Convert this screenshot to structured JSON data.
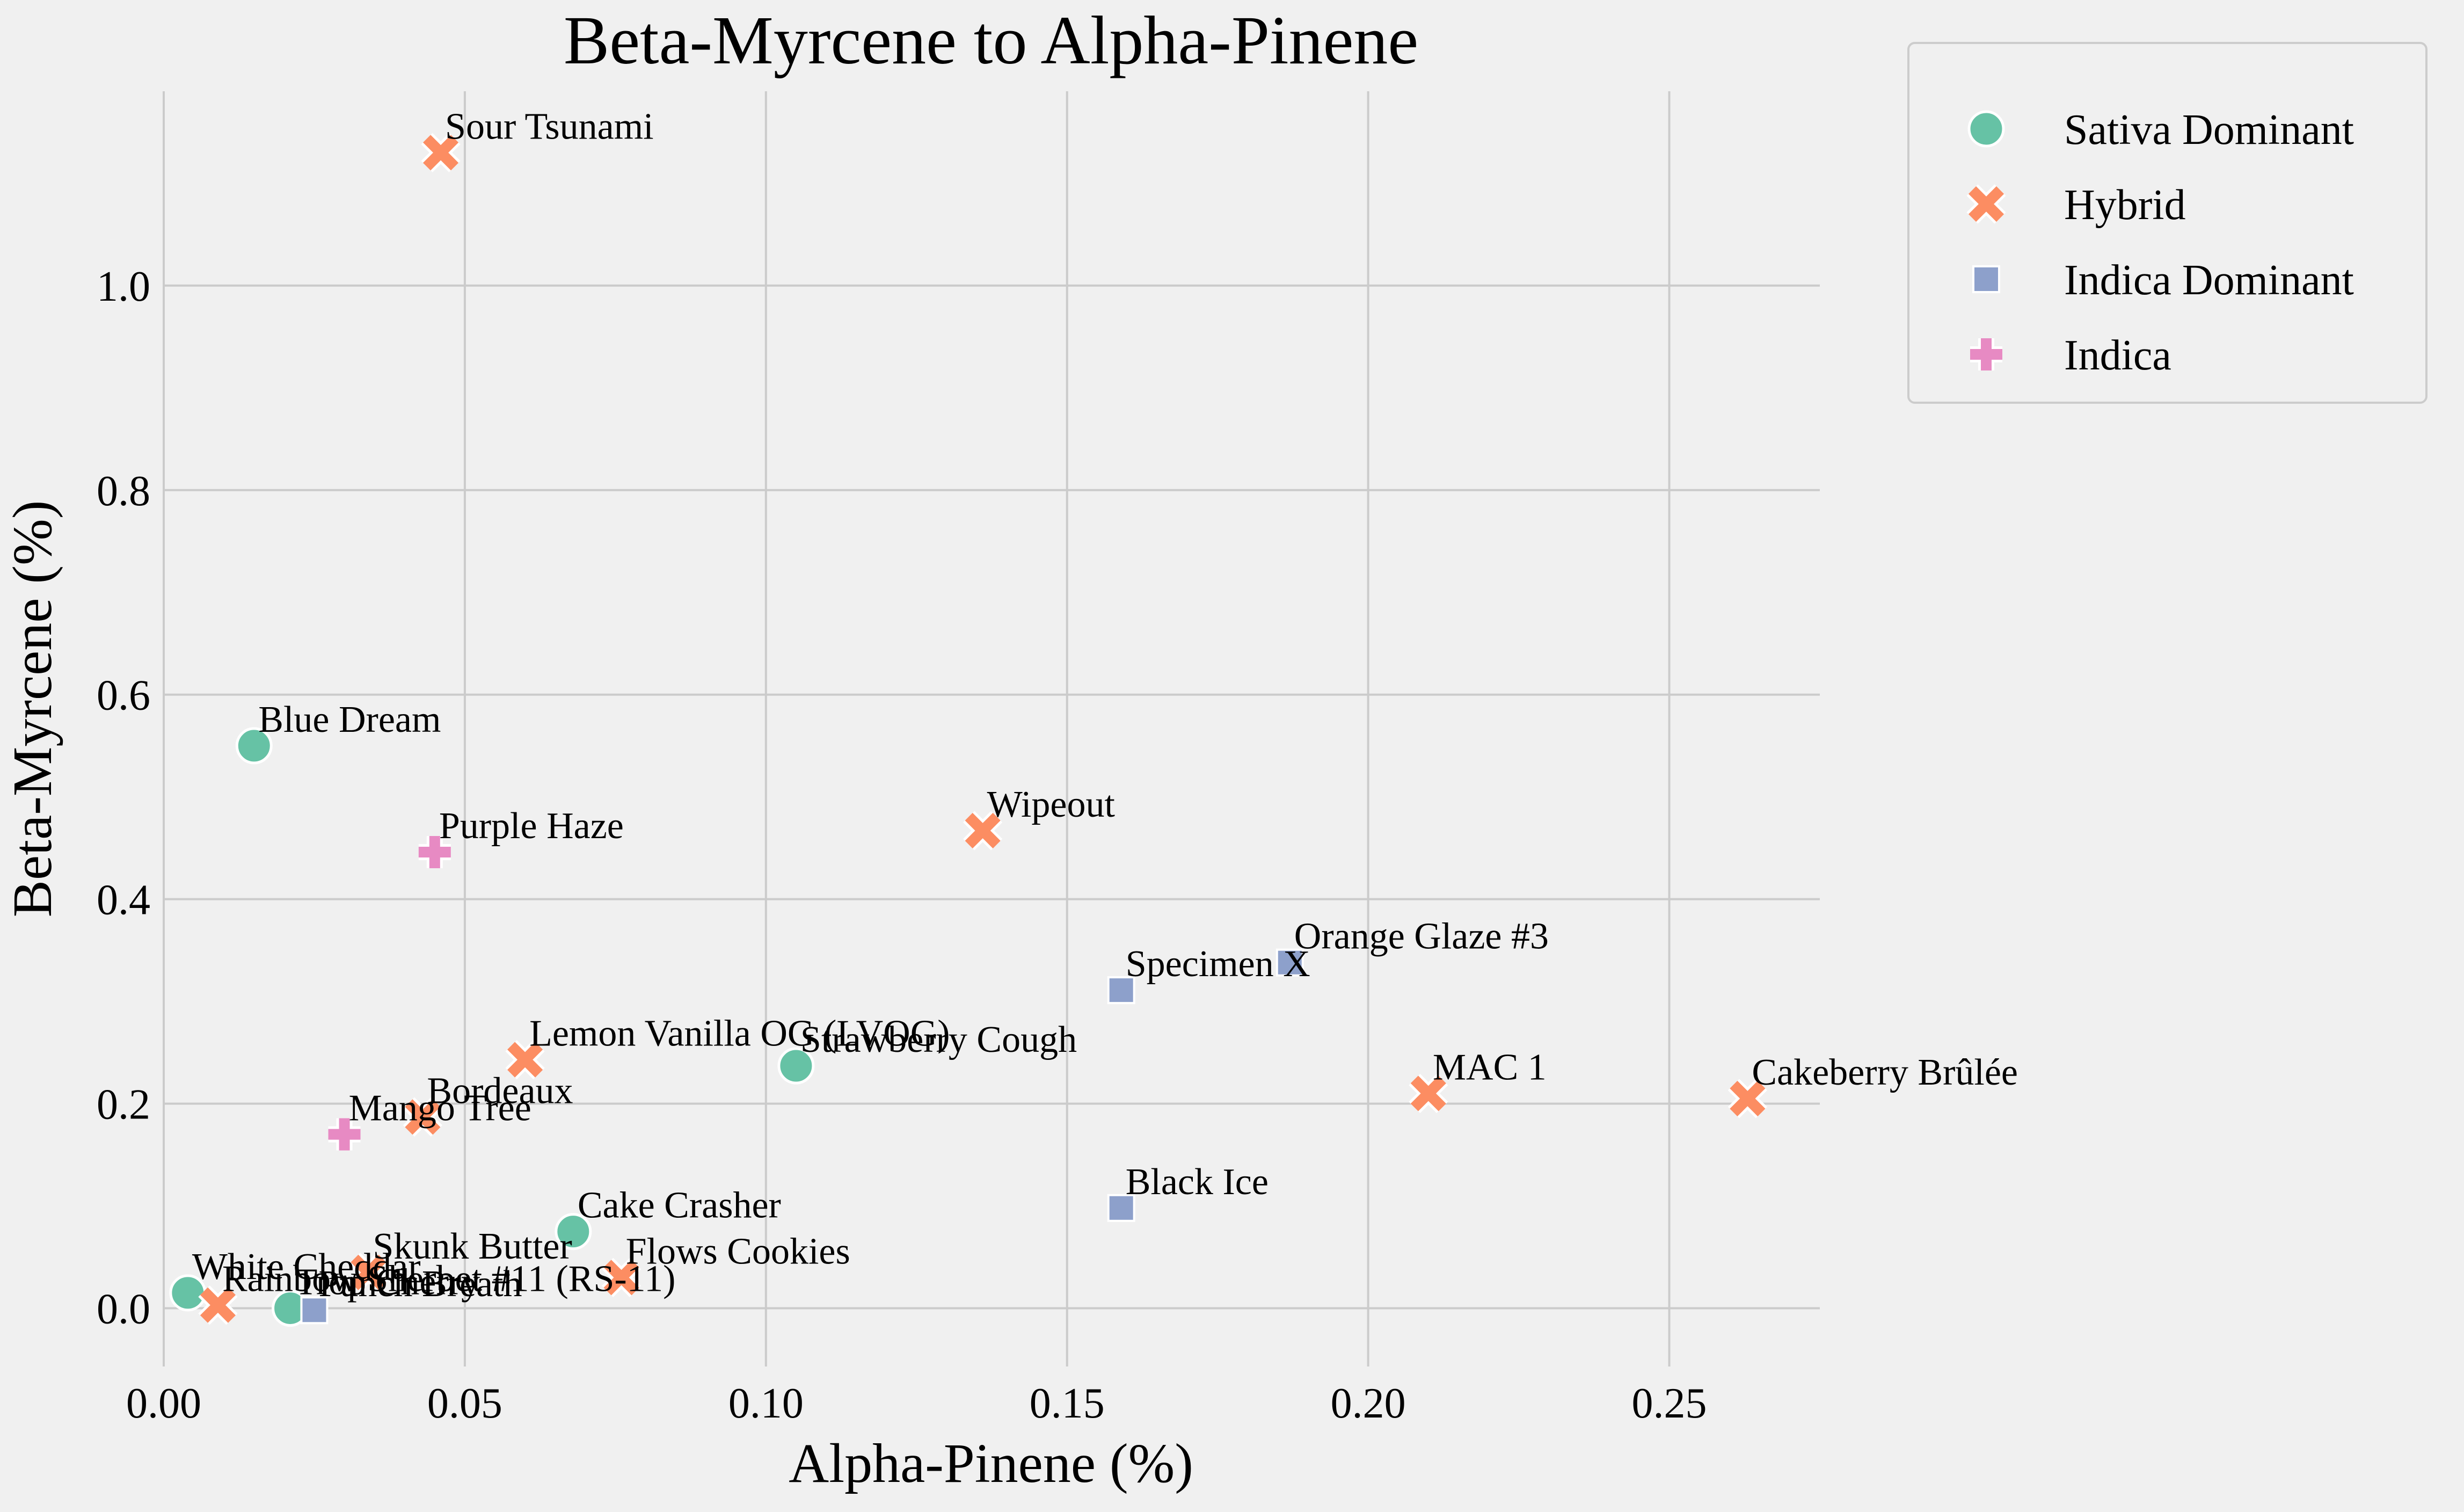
{
  "chart_data": {
    "type": "scatter",
    "title": "Beta-Myrcene to Alpha-Pinene",
    "xlabel": "Alpha-Pinene (%)",
    "ylabel": "Beta-Myrcene (%)",
    "xlim": [
      0,
      0.275
    ],
    "ylim": [
      -0.057,
      1.19
    ],
    "xticks": [
      0.0,
      0.05,
      0.1,
      0.15,
      0.2,
      0.25
    ],
    "xtick_labels": [
      "0.00",
      "0.05",
      "0.10",
      "0.15",
      "0.20",
      "0.25"
    ],
    "yticks": [
      0.0,
      0.2,
      0.4,
      0.6,
      0.8,
      1.0
    ],
    "ytick_labels": [
      "0.0",
      "0.2",
      "0.4",
      "0.6",
      "0.8",
      "1.0"
    ],
    "grid": true,
    "legend_position": "outside-top-right",
    "series": [
      {
        "name": "Sativa Dominant",
        "marker": "circle",
        "color": "#66c2a5",
        "points": [
          {
            "label": "Blue Dream",
            "x": 0.015,
            "y": 0.55
          },
          {
            "label": "Strawberry Cough",
            "x": 0.105,
            "y": 0.237
          },
          {
            "label": "Cake Crasher",
            "x": 0.068,
            "y": 0.075
          },
          {
            "label": "White Cheddar",
            "x": 0.004,
            "y": 0.015
          },
          {
            "label": "Trop Cherry",
            "x": 0.021,
            "y": 0.0
          }
        ]
      },
      {
        "name": "Hybrid",
        "marker": "x",
        "color": "#fc8d62",
        "points": [
          {
            "label": "Sour Tsunami",
            "x": 0.046,
            "y": 1.13
          },
          {
            "label": "Wipeout",
            "x": 0.136,
            "y": 0.467
          },
          {
            "label": "Lemon Vanilla OG (LVOG)",
            "x": 0.06,
            "y": 0.243
          },
          {
            "label": "Bordeaux",
            "x": 0.043,
            "y": 0.187
          },
          {
            "label": "MAC 1",
            "x": 0.21,
            "y": 0.21
          },
          {
            "label": "Cakeberry Brûlée",
            "x": 0.263,
            "y": 0.205
          },
          {
            "label": "Flows Cookies",
            "x": 0.076,
            "y": 0.03
          },
          {
            "label": "Skunk Butter",
            "x": 0.034,
            "y": 0.035
          },
          {
            "label": "Rainbow Sherbet #11 (RS-11)",
            "x": 0.009,
            "y": 0.003
          }
        ]
      },
      {
        "name": "Indica Dominant",
        "marker": "square",
        "color": "#8da0cb",
        "points": [
          {
            "label": "Specimen X",
            "x": 0.159,
            "y": 0.311
          },
          {
            "label": "Orange Glaze #3",
            "x": 0.187,
            "y": 0.338
          },
          {
            "label": "Black Ice",
            "x": 0.159,
            "y": 0.098
          },
          {
            "label": "Punch Breath",
            "x": 0.025,
            "y": -0.002
          }
        ]
      },
      {
        "name": "Indica",
        "marker": "plus",
        "color": "#e78ac3",
        "points": [
          {
            "label": "Purple Haze",
            "x": 0.045,
            "y": 0.446
          },
          {
            "label": "Mango Tree",
            "x": 0.03,
            "y": 0.17
          }
        ]
      }
    ]
  }
}
